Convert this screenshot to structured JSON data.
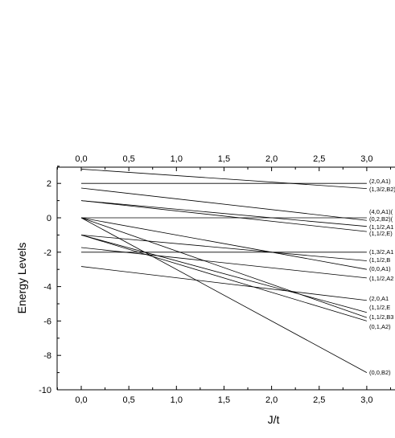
{
  "chart_data": {
    "type": "line",
    "title": "",
    "xlabel": "J/t",
    "ylabel": "Energy Levels",
    "xlim": [
      -0.3,
      3.3
    ],
    "ylim": [
      -10,
      3
    ],
    "x_ticks": [
      "0,0",
      "0,5",
      "1,0",
      "1,5",
      "2,0",
      "2,5",
      "3,0"
    ],
    "y_ticks": [
      "2",
      "0",
      "-2",
      "-4",
      "-6",
      "-8",
      "-10"
    ],
    "grid": false,
    "line_color": "#000000",
    "series": [
      {
        "name": "(2,0,A1)",
        "x": [
          0,
          3
        ],
        "y": [
          2.0,
          2.0
        ]
      },
      {
        "name": "(1,3/2,B2)",
        "x": [
          0,
          3
        ],
        "y": [
          2.83,
          1.7
        ]
      },
      {
        "name": "(4,0,A1)(",
        "x": [
          0,
          3
        ],
        "y": [
          0,
          0
        ]
      },
      {
        "name": "(0,2,B2)(",
        "x": [
          0,
          3
        ],
        "y": [
          1.73,
          -0.15
        ]
      },
      {
        "name": "(1,1/2,A1",
        "x": [
          0,
          3
        ],
        "y": [
          1.0,
          -0.5
        ]
      },
      {
        "name": "(1,1/2,E)",
        "x": [
          0,
          3
        ],
        "y": [
          1.0,
          -0.8
        ]
      },
      {
        "name": "(1,3/2,A1",
        "x": [
          0,
          3
        ],
        "y": [
          -2.0,
          -2.0
        ]
      },
      {
        "name": "(1,1/2,B",
        "x": [
          0,
          3
        ],
        "y": [
          -1.0,
          -2.5
        ]
      },
      {
        "name": "(0,0,A1)",
        "x": [
          0,
          3
        ],
        "y": [
          0,
          -3.0
        ]
      },
      {
        "name": "(1,1/2,A2",
        "x": [
          0,
          3
        ],
        "y": [
          -1.73,
          -3.5
        ]
      },
      {
        "name": "(2,0,A1",
        "x": [
          0,
          3
        ],
        "y": [
          -2.83,
          -4.8
        ]
      },
      {
        "name": "(1,1/2,E",
        "x": [
          0,
          3
        ],
        "y": [
          -1.0,
          -5.5
        ]
      },
      {
        "name": "(1,1/2,B3",
        "x": [
          0,
          3
        ],
        "y": [
          0,
          -5.8
        ]
      },
      {
        "name": "(0,1,A2)",
        "x": [
          0,
          3
        ],
        "y": [
          -1.0,
          -6.0
        ]
      },
      {
        "name": "(0,0,B2)",
        "x": [
          0,
          3
        ],
        "y": [
          0,
          -9.0
        ]
      }
    ]
  }
}
